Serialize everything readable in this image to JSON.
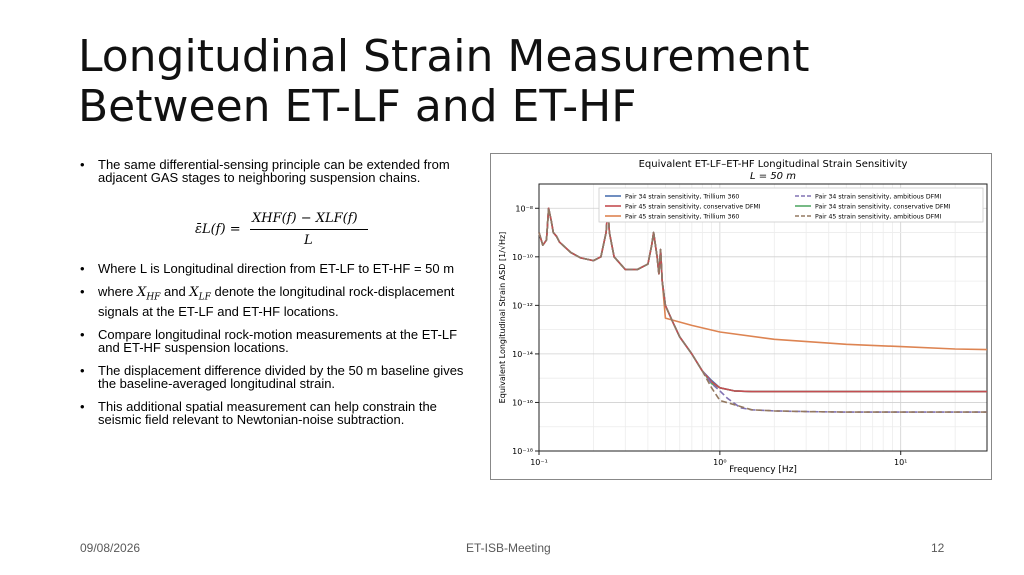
{
  "slide": {
    "title_line1": "Longitudinal Strain Measurement",
    "title_line2": "Between ET-LF and ET-HF",
    "bullets": [
      "The same differential-sensing principle can be extended from adjacent GAS stages to neighboring suspension chains.",
      "Where L is Longitudinal direction from ET-LF to ET-HF = 50 m",
      "denote the longitudinal rock-displacement signals at the ET-LF and ET-HF locations.",
      "Compare longitudinal rock-motion measurements at the ET-LF and ET-HF suspension locations.",
      "The displacement difference divided by the 50 m baseline gives the baseline-averaged longitudinal strain.",
      "This additional spatial measurement can help constrain the seismic field relevant to Newtonian-noise subtraction."
    ],
    "bullet3_where": "where",
    "bullet3_and": "and",
    "bullet3_x1": "X",
    "bullet3_x1_sub": "HF",
    "bullet3_x2": "X",
    "bullet3_x2_sub": "LF",
    "equation": {
      "lhs": "ε̄L(f) =",
      "numerator": "XHF(f) − XLF(f)",
      "denominator": "L"
    },
    "bullet_marker": "•"
  },
  "footer": {
    "date": "09/08/2026",
    "meeting": "ET-ISB-Meeting",
    "page": "12"
  },
  "chart_data": {
    "type": "line",
    "title": "Equivalent ET-LF–ET-HF Longitudinal Strain Sensitivity",
    "subtitle": "L = 50 m",
    "xlabel": "Frequency [Hz]",
    "ylabel": "Equivalent Longitudinal Strain ASD [1/√Hz]",
    "xscale": "log",
    "yscale": "log",
    "xlim": [
      0.1,
      30
    ],
    "ylim": [
      1e-18,
      1e-07
    ],
    "xticks": [
      0.1,
      1,
      10
    ],
    "xtick_labels": [
      "10⁻¹",
      "10⁰",
      "10¹"
    ],
    "yticks": [
      1e-18,
      1e-16,
      1e-14,
      1e-12,
      1e-10,
      1e-08
    ],
    "ytick_labels": [
      "10⁻¹⁸",
      "10⁻¹⁶",
      "10⁻¹⁴",
      "10⁻¹²",
      "10⁻¹⁰",
      "10⁻⁸"
    ],
    "grid": true,
    "legend_position": "top",
    "series": [
      {
        "name": "Pair 34 strain sensitivity, Trillium 360",
        "color": "#4c72b0",
        "dash": "solid",
        "x": [
          0.1,
          0.105,
          0.11,
          0.113,
          0.117,
          0.12,
          0.125,
          0.13,
          0.15,
          0.17,
          0.2,
          0.22,
          0.235,
          0.24,
          0.245,
          0.26,
          0.3,
          0.35,
          0.4,
          0.42,
          0.43,
          0.45,
          0.46,
          0.47,
          0.48,
          0.5,
          0.55,
          0.6,
          0.7,
          0.8,
          0.9,
          1.0,
          1.2,
          1.5,
          2,
          3,
          5,
          10,
          20,
          30
        ],
        "y": [
          1e-09,
          3e-10,
          5e-10,
          1e-08,
          3e-09,
          1e-09,
          7e-10,
          4e-10,
          1.5e-10,
          9e-11,
          7e-11,
          1e-10,
          1e-09,
          1e-08,
          1e-09,
          1e-10,
          3e-11,
          3e-11,
          5e-11,
          3e-10,
          1e-09,
          1e-10,
          2e-11,
          2e-10,
          1e-11,
          1e-12,
          2e-13,
          5e-14,
          1e-14,
          2e-15,
          8e-16,
          4e-16,
          3e-16,
          2.8e-16,
          2.8e-16,
          2.8e-16,
          2.8e-16,
          2.8e-16,
          2.8e-16,
          2.8e-16
        ]
      },
      {
        "name": "Pair 45 strain sensitivity, Trillium 360",
        "color": "#dd8452",
        "dash": "solid",
        "x": [
          0.1,
          0.105,
          0.11,
          0.113,
          0.117,
          0.12,
          0.125,
          0.13,
          0.15,
          0.17,
          0.2,
          0.22,
          0.235,
          0.24,
          0.245,
          0.26,
          0.3,
          0.35,
          0.4,
          0.42,
          0.43,
          0.45,
          0.46,
          0.47,
          0.48,
          0.5,
          0.7,
          1,
          2,
          5,
          10,
          20,
          30
        ],
        "y": [
          1e-09,
          3e-10,
          5e-10,
          1e-08,
          3e-09,
          1e-09,
          7e-10,
          4e-10,
          1.5e-10,
          9e-11,
          7e-11,
          1e-10,
          1e-09,
          1e-08,
          1e-09,
          1e-10,
          3e-11,
          3e-11,
          5e-11,
          3e-10,
          1e-09,
          1e-10,
          2e-11,
          2e-10,
          1e-11,
          3e-13,
          1.5e-13,
          8e-14,
          4e-14,
          2.5e-14,
          2e-14,
          1.6e-14,
          1.5e-14
        ]
      },
      {
        "name": "Pair 34 strain sensitivity, conservative DFMI",
        "color": "#55a868",
        "dash": "solid",
        "x": [
          0.1,
          0.105,
          0.11,
          0.113,
          0.117,
          0.12,
          0.125,
          0.13,
          0.15,
          0.17,
          0.2,
          0.22,
          0.235,
          0.24,
          0.245,
          0.26,
          0.3,
          0.35,
          0.4,
          0.42,
          0.43,
          0.45,
          0.46,
          0.47,
          0.48,
          0.5,
          0.55,
          0.6,
          0.7,
          0.8,
          0.9,
          1.0,
          1.2,
          1.5,
          2,
          3,
          5,
          10,
          20,
          30
        ],
        "y": [
          1e-09,
          3e-10,
          5e-10,
          1e-08,
          3e-09,
          1e-09,
          7e-10,
          4e-10,
          1.5e-10,
          9e-11,
          7e-11,
          1e-10,
          1e-09,
          1e-08,
          1e-09,
          1e-10,
          3e-11,
          3e-11,
          5e-11,
          3e-10,
          1e-09,
          1e-10,
          2e-11,
          2e-10,
          1e-11,
          1e-12,
          2e-13,
          5e-14,
          1e-14,
          2e-15,
          6e-16,
          4e-16,
          3e-16,
          2.8e-16,
          2.8e-16,
          2.8e-16,
          2.8e-16,
          2.8e-16,
          2.8e-16,
          2.8e-16
        ]
      },
      {
        "name": "Pair 45 strain sensitivity, conservative DFMI",
        "color": "#c44e52",
        "dash": "solid",
        "x": [
          0.1,
          0.105,
          0.11,
          0.113,
          0.117,
          0.12,
          0.125,
          0.13,
          0.15,
          0.17,
          0.2,
          0.22,
          0.235,
          0.24,
          0.245,
          0.26,
          0.3,
          0.35,
          0.4,
          0.42,
          0.43,
          0.45,
          0.46,
          0.47,
          0.48,
          0.5,
          0.55,
          0.6,
          0.7,
          0.8,
          0.9,
          1.0,
          1.2,
          1.5,
          2,
          3,
          5,
          10,
          20,
          30
        ],
        "y": [
          1e-09,
          3e-10,
          5e-10,
          1e-08,
          3e-09,
          1e-09,
          7e-10,
          4e-10,
          1.5e-10,
          9e-11,
          7e-11,
          1e-10,
          1e-09,
          1e-08,
          1e-09,
          1e-10,
          3e-11,
          3e-11,
          5e-11,
          3e-10,
          1e-09,
          1e-10,
          2e-11,
          2e-10,
          1e-11,
          1e-12,
          2e-13,
          5e-14,
          1e-14,
          2e-15,
          7e-16,
          4e-16,
          3e-16,
          2.8e-16,
          2.8e-16,
          2.8e-16,
          2.8e-16,
          2.8e-16,
          2.8e-16,
          2.8e-16
        ]
      },
      {
        "name": "Pair 34 strain sensitivity, ambitious DFMI",
        "color": "#8172b3",
        "dash": "dashed",
        "x": [
          0.1,
          0.105,
          0.11,
          0.113,
          0.117,
          0.12,
          0.125,
          0.13,
          0.15,
          0.17,
          0.2,
          0.22,
          0.235,
          0.24,
          0.245,
          0.26,
          0.3,
          0.35,
          0.4,
          0.42,
          0.43,
          0.45,
          0.46,
          0.47,
          0.48,
          0.5,
          0.55,
          0.6,
          0.7,
          0.8,
          0.9,
          1.0,
          1.1,
          1.3,
          1.5,
          2,
          3,
          5,
          10,
          20,
          30
        ],
        "y": [
          1e-09,
          3e-10,
          5e-10,
          1e-08,
          3e-09,
          1e-09,
          7e-10,
          4e-10,
          1.5e-10,
          9e-11,
          7e-11,
          1e-10,
          1e-09,
          1e-08,
          1e-09,
          1e-10,
          3e-11,
          3e-11,
          5e-11,
          3e-10,
          1e-09,
          1e-10,
          2e-11,
          2e-10,
          1e-11,
          1e-12,
          2e-13,
          5e-14,
          1e-14,
          2e-15,
          6e-16,
          3e-16,
          1.5e-16,
          6e-17,
          5e-17,
          4.5e-17,
          4.2e-17,
          4e-17,
          4e-17,
          4e-17,
          4e-17
        ]
      },
      {
        "name": "Pair 45 strain sensitivity, ambitious DFMI",
        "color": "#937860",
        "dash": "dashed",
        "x": [
          0.1,
          0.105,
          0.11,
          0.113,
          0.117,
          0.12,
          0.125,
          0.13,
          0.15,
          0.17,
          0.2,
          0.22,
          0.235,
          0.24,
          0.245,
          0.26,
          0.3,
          0.35,
          0.4,
          0.42,
          0.43,
          0.45,
          0.46,
          0.47,
          0.48,
          0.5,
          0.55,
          0.6,
          0.7,
          0.8,
          0.9,
          1.0,
          1.5,
          2,
          3,
          5,
          10,
          20,
          30
        ],
        "y": [
          1e-09,
          3e-10,
          5e-10,
          1e-08,
          3e-09,
          1e-09,
          7e-10,
          4e-10,
          1.5e-10,
          9e-11,
          7e-11,
          1e-10,
          1e-09,
          1e-08,
          1e-09,
          1e-10,
          3e-11,
          3e-11,
          5e-11,
          3e-10,
          1e-09,
          1e-10,
          2e-11,
          2e-10,
          1e-11,
          1e-12,
          2e-13,
          5e-14,
          1e-14,
          2e-15,
          4e-16,
          1.2e-16,
          5e-17,
          4.5e-17,
          4.2e-17,
          4e-17,
          4e-17,
          4e-17,
          4e-17
        ]
      }
    ]
  }
}
